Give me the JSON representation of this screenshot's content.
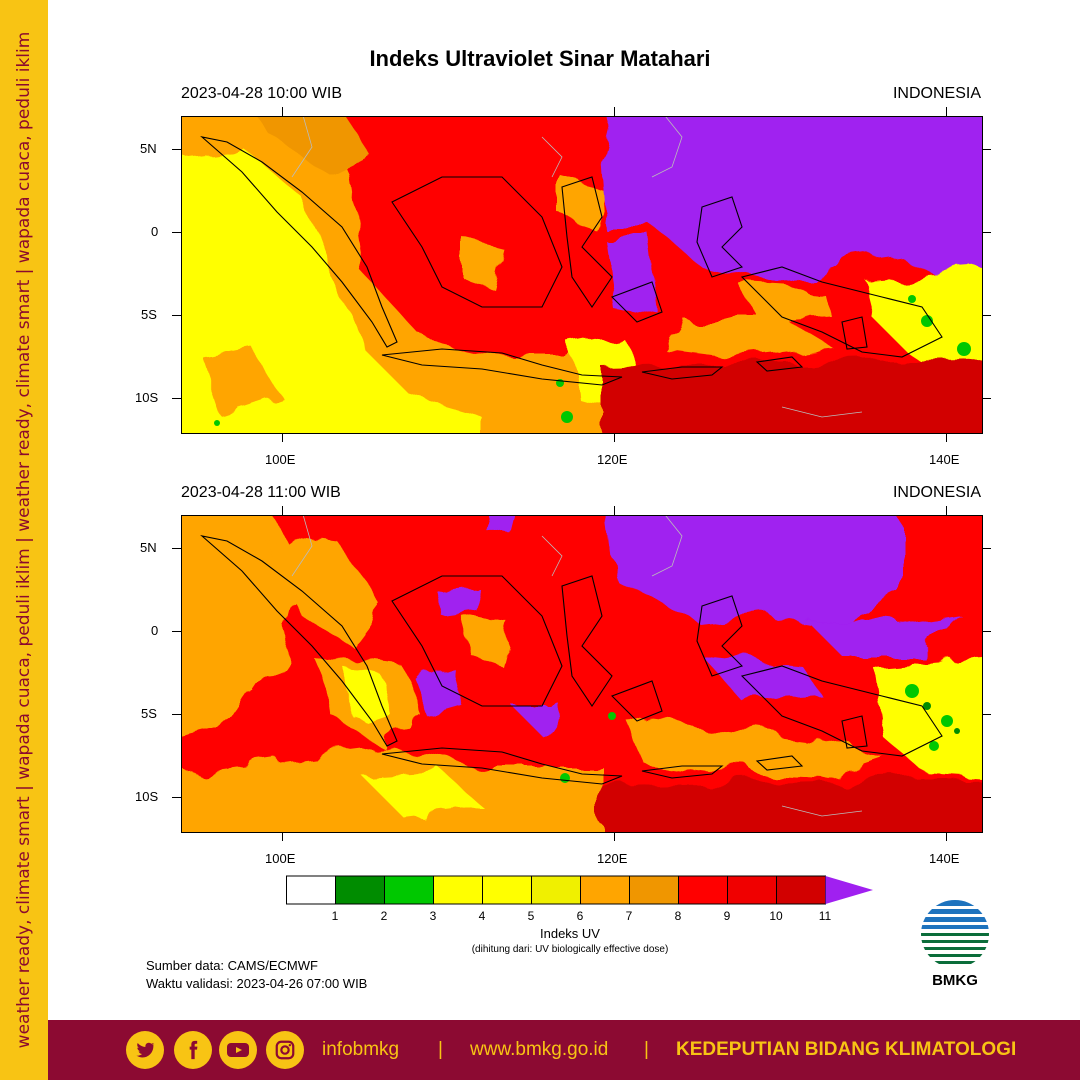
{
  "side_banner": "weather ready, climate smart | wapada cuaca, peduli iklim  |  weather ready, climate smart | wapada cuaca, peduli iklim",
  "title": "Indeks Ultraviolet Sinar Matahari",
  "panels": [
    {
      "timestamp": "2023-04-28  10:00 WIB",
      "region": "INDONESIA"
    },
    {
      "timestamp": "2023-04-28  11:00 WIB",
      "region": "INDONESIA"
    }
  ],
  "axes": {
    "lat_labels": [
      "5N",
      "0",
      "5S",
      "10S"
    ],
    "lon_labels": [
      "100E",
      "120E",
      "140E"
    ]
  },
  "colorbar": {
    "title": "Indeks UV",
    "subtitle": "(dihitung dari: UV biologically effective dose)",
    "tick_labels": [
      "1",
      "2",
      "3",
      "4",
      "5",
      "6",
      "7",
      "8",
      "9",
      "10",
      "11"
    ],
    "colors": [
      "#ffffff",
      "#008c00",
      "#00c800",
      "#ffff00",
      "#ffff00",
      "#f0f000",
      "#ffa500",
      "#f09600",
      "#ff0000",
      "#f00000",
      "#d20000",
      "#a020f0"
    ]
  },
  "source": {
    "data": "Sumber data: CAMS/ECMWF",
    "validity": "Waktu validasi: 2023-04-26 07:00 WIB"
  },
  "logo": {
    "text": "BMKG"
  },
  "footer": {
    "handle": "infobmkg",
    "separator": "|",
    "website": "www.bmkg.go.id",
    "department": "KEDEPUTIAN BIDANG KLIMATOLOGI",
    "icons": [
      "twitter-icon",
      "facebook-icon",
      "youtube-icon",
      "instagram-icon"
    ]
  }
}
